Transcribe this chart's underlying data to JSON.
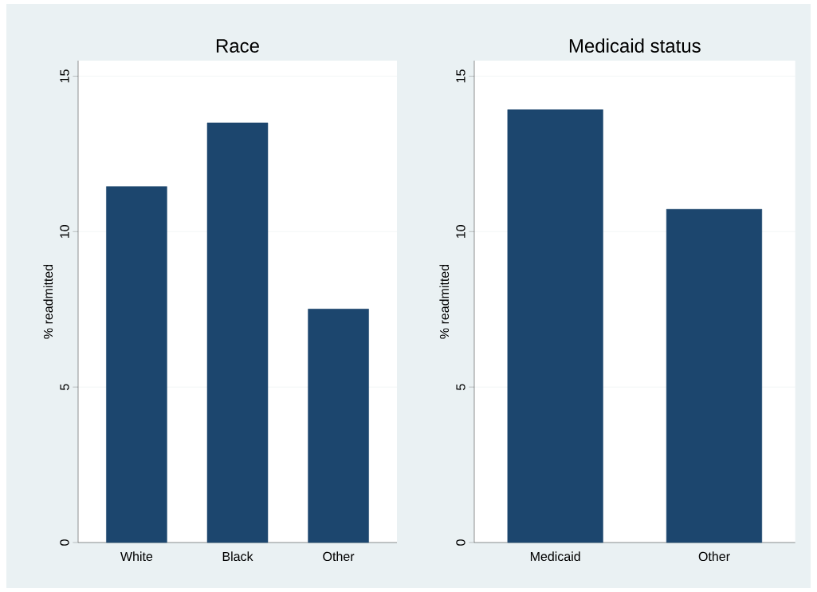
{
  "chart_data": [
    {
      "type": "bar",
      "title": "Race",
      "ylabel": "% readmitted",
      "categories": [
        "White",
        "Black",
        "Other"
      ],
      "values": [
        11.45,
        13.5,
        7.51
      ],
      "color": "#1c466e",
      "ylim": [
        0,
        15.5
      ],
      "yticks": [
        0,
        5,
        10,
        15
      ],
      "grid": "y"
    },
    {
      "type": "bar",
      "title": "Medicaid status",
      "ylabel": "% readmitted",
      "categories": [
        "Medicaid",
        "Other"
      ],
      "values": [
        13.92,
        10.72
      ],
      "color": "#1c466e",
      "ylim": [
        0,
        15.5
      ],
      "yticks": [
        0,
        5,
        10,
        15
      ],
      "grid": "y"
    }
  ]
}
